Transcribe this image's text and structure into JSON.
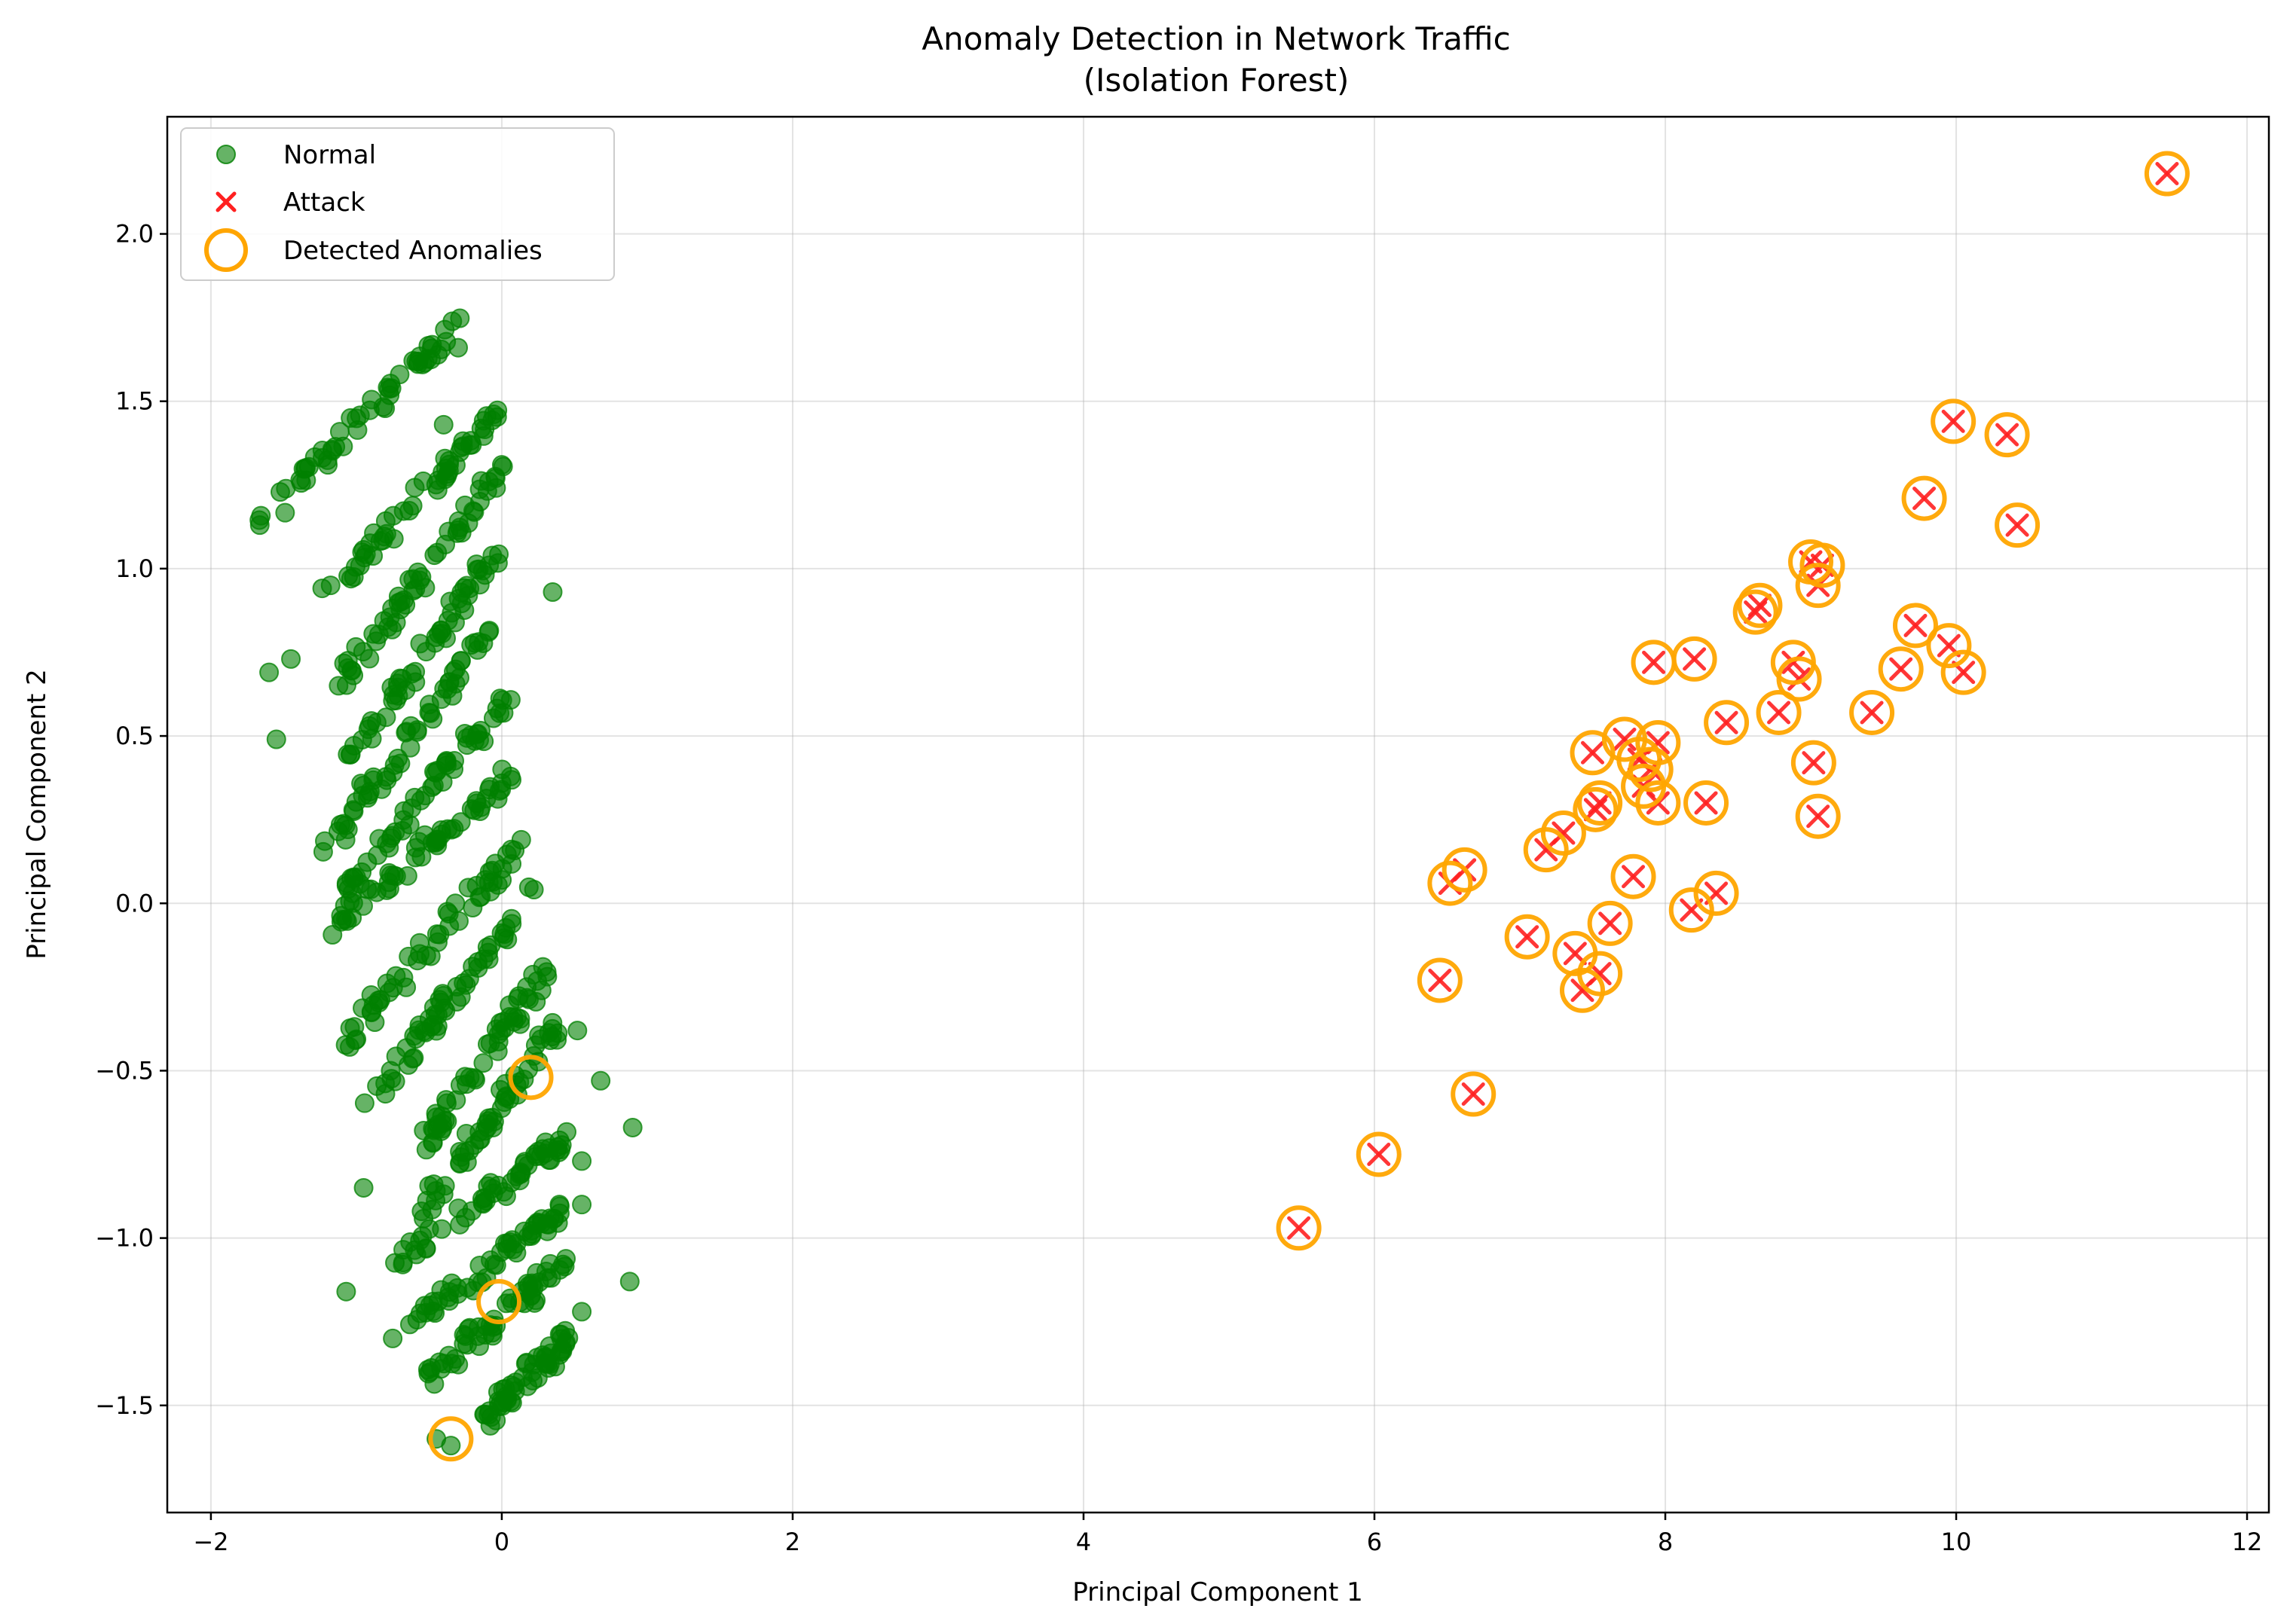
{
  "chart_data": {
    "type": "scatter",
    "title_line1": "Anomaly Detection in Network Traffic",
    "title_line2": "(Isolation Forest)",
    "xlabel": "Principal Component 1",
    "ylabel": "Principal Component 2",
    "xlim": [
      -2.3,
      12.15
    ],
    "ylim": [
      -1.82,
      2.35
    ],
    "xticks": [
      -2,
      0,
      2,
      4,
      6,
      8,
      10,
      12
    ],
    "xtick_labels": [
      "−2",
      "0",
      "2",
      "4",
      "6",
      "8",
      "10",
      "12"
    ],
    "yticks": [
      -1.5,
      -1.0,
      -0.5,
      0.0,
      0.5,
      1.0,
      1.5,
      2.0
    ],
    "ytick_labels": [
      "−1.5",
      "−1.0",
      "−0.5",
      "0.0",
      "0.5",
      "1.0",
      "1.5",
      "2.0"
    ],
    "grid": true,
    "legend_position": "top-left",
    "normal_stripes": {
      "note": "Normal points approximated as diagonal stripes; each stripe = start [x,y] to end [x,y] in data units",
      "stripes": [
        {
          "start": [
            -1.65,
            1.14
          ],
          "end": [
            -0.3,
            1.74
          ]
        },
        {
          "start": [
            -1.2,
            0.91
          ],
          "end": [
            -0.05,
            1.46
          ]
        },
        {
          "start": [
            -1.1,
            0.66
          ],
          "end": [
            -0.0,
            1.3
          ]
        },
        {
          "start": [
            -1.05,
            0.44
          ],
          "end": [
            -0.05,
            1.03
          ]
        },
        {
          "start": [
            -1.18,
            0.18
          ],
          "end": [
            -0.02,
            0.85
          ]
        },
        {
          "start": [
            -1.1,
            0.03
          ],
          "end": [
            0.05,
            0.62
          ]
        },
        {
          "start": [
            -1.17,
            -0.07
          ],
          "end": [
            0.1,
            0.4
          ]
        },
        {
          "start": [
            -1.08,
            -0.41
          ],
          "end": [
            0.15,
            0.18
          ]
        },
        {
          "start": [
            -0.9,
            -0.58
          ],
          "end": [
            0.22,
            0.03
          ]
        },
        {
          "start": [
            -0.55,
            -0.73
          ],
          "end": [
            0.3,
            -0.2
          ]
        },
        {
          "start": [
            -0.55,
            -0.93
          ],
          "end": [
            0.4,
            -0.35
          ]
        },
        {
          "start": [
            -0.7,
            -1.07
          ],
          "end": [
            0.5,
            -0.68
          ]
        },
        {
          "start": [
            -0.6,
            -1.25
          ],
          "end": [
            0.55,
            -0.87
          ]
        },
        {
          "start": [
            -0.55,
            -1.43
          ],
          "end": [
            0.45,
            -1.07
          ]
        },
        {
          "start": [
            -0.15,
            -1.55
          ],
          "end": [
            0.45,
            -1.3
          ]
        }
      ],
      "scattered": [
        [
          -1.6,
          0.69
        ],
        [
          -1.55,
          0.49
        ],
        [
          -1.45,
          0.73
        ],
        [
          0.35,
          0.93
        ],
        [
          0.68,
          -0.53
        ],
        [
          0.9,
          -0.67
        ],
        [
          0.88,
          -1.13
        ],
        [
          -0.95,
          -0.85
        ],
        [
          -1.07,
          -1.16
        ],
        [
          -0.75,
          -1.3
        ],
        [
          0.55,
          -1.22
        ],
        [
          0.52,
          -0.38
        ],
        [
          0.55,
          -0.77
        ],
        [
          -0.45,
          -1.6
        ],
        [
          -0.35,
          -1.62
        ],
        [
          -0.3,
          1.66
        ],
        [
          -0.4,
          1.43
        ],
        [
          0.0,
          1.31
        ],
        [
          -0.15,
          1.2
        ],
        [
          0.32,
          -0.96
        ]
      ]
    },
    "attack_points": [
      [
        5.48,
        -0.97
      ],
      [
        6.03,
        -0.75
      ],
      [
        6.45,
        -0.23
      ],
      [
        6.52,
        0.06
      ],
      [
        6.62,
        0.1
      ],
      [
        6.68,
        -0.57
      ],
      [
        7.05,
        -0.1
      ],
      [
        7.18,
        0.16
      ],
      [
        7.3,
        0.21
      ],
      [
        7.38,
        -0.15
      ],
      [
        7.43,
        -0.26
      ],
      [
        7.5,
        0.45
      ],
      [
        7.52,
        0.28
      ],
      [
        7.55,
        -0.21
      ],
      [
        7.55,
        0.3
      ],
      [
        7.62,
        -0.06
      ],
      [
        7.72,
        0.49
      ],
      [
        7.78,
        0.08
      ],
      [
        7.82,
        0.43
      ],
      [
        7.85,
        0.35
      ],
      [
        7.9,
        0.4
      ],
      [
        7.92,
        0.72
      ],
      [
        7.95,
        0.48
      ],
      [
        7.95,
        0.3
      ],
      [
        8.18,
        -0.02
      ],
      [
        8.2,
        0.73
      ],
      [
        8.28,
        0.3
      ],
      [
        8.35,
        0.03
      ],
      [
        8.42,
        0.54
      ],
      [
        8.62,
        0.87
      ],
      [
        8.65,
        0.89
      ],
      [
        8.78,
        0.57
      ],
      [
        8.88,
        0.72
      ],
      [
        8.92,
        0.67
      ],
      [
        9.0,
        1.02
      ],
      [
        9.02,
        0.42
      ],
      [
        9.05,
        0.26
      ],
      [
        9.05,
        0.95
      ],
      [
        9.08,
        1.01
      ],
      [
        9.42,
        0.57
      ],
      [
        9.62,
        0.7
      ],
      [
        9.72,
        0.83
      ],
      [
        9.78,
        1.21
      ],
      [
        9.95,
        0.77
      ],
      [
        9.98,
        1.44
      ],
      [
        10.05,
        0.69
      ],
      [
        10.35,
        1.4
      ],
      [
        10.42,
        1.13
      ],
      [
        11.45,
        2.18
      ]
    ],
    "detected_anomalies_extra": [
      [
        0.2,
        -0.52
      ],
      [
        -0.02,
        -1.19
      ],
      [
        -0.35,
        -1.6
      ]
    ],
    "series": [
      {
        "name": "Normal",
        "marker": "circle",
        "color": "#008000"
      },
      {
        "name": "Attack",
        "marker": "x",
        "color": "#ff2020"
      },
      {
        "name": "Detected Anomalies",
        "marker": "ring",
        "color": "#ffa500"
      }
    ]
  }
}
